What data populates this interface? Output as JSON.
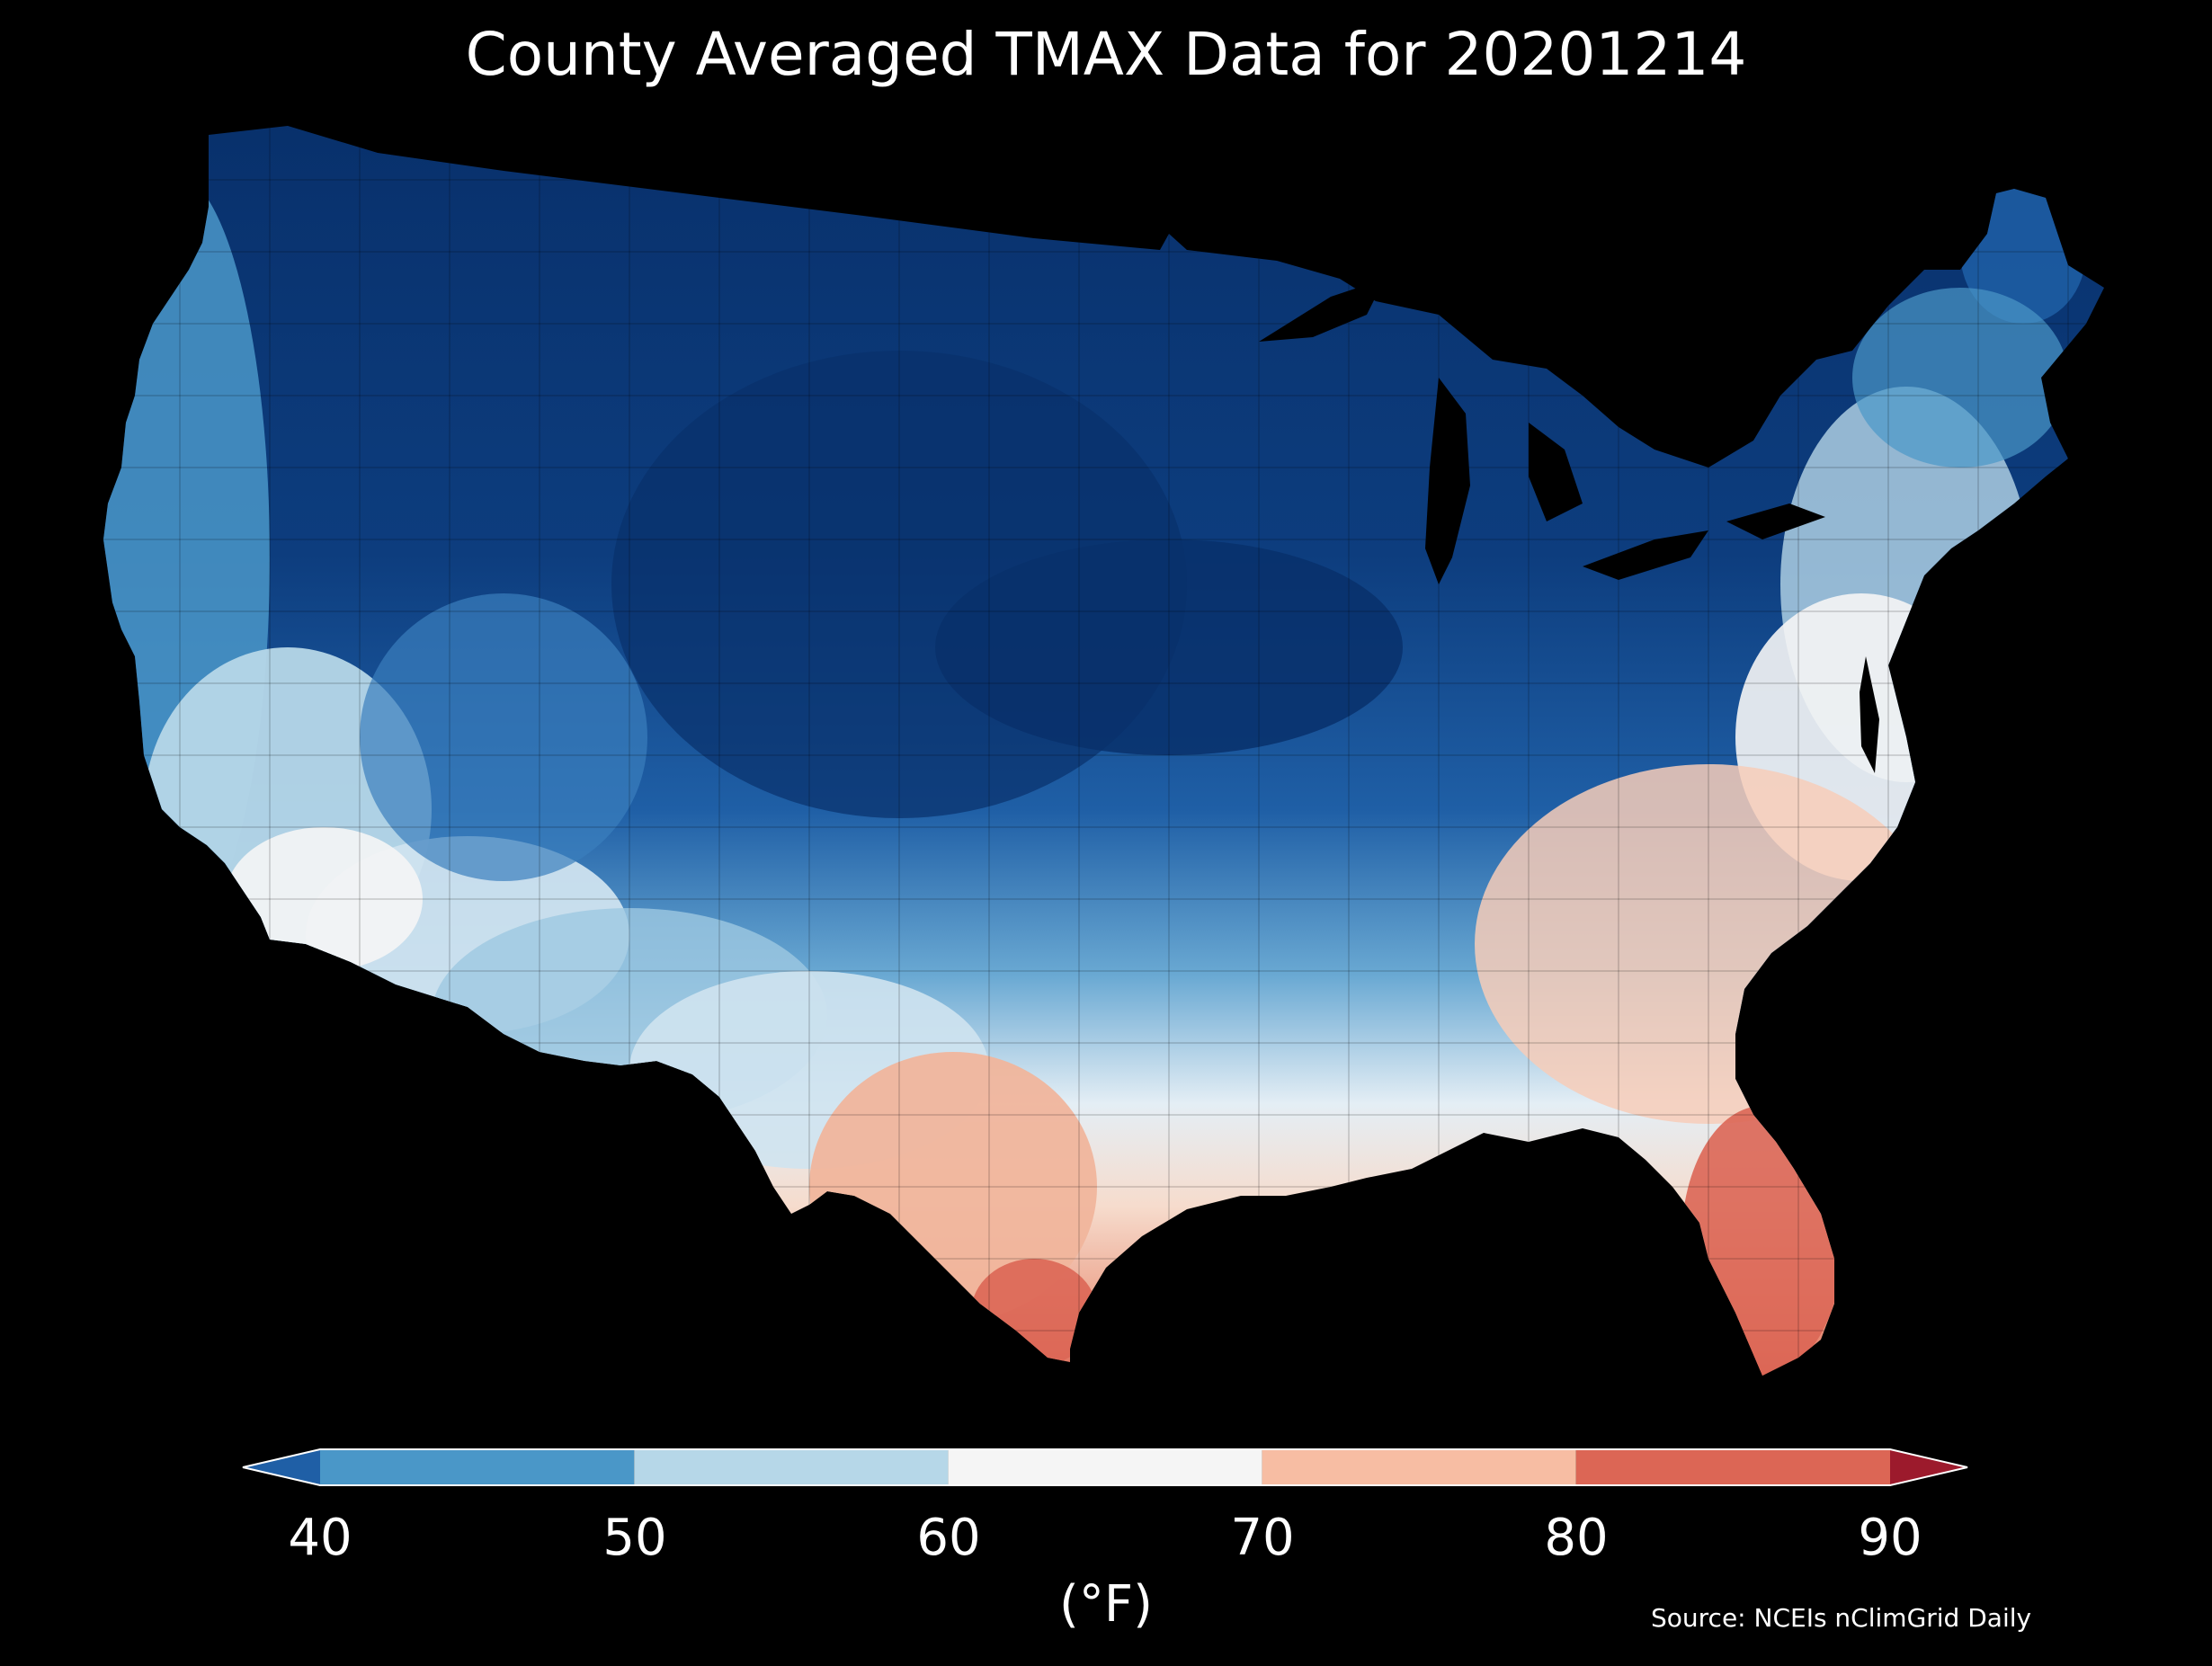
{
  "title": "County Averaged TMAX Data for 20201214",
  "colorbar": {
    "label": "(°F)",
    "ticks": [
      "40",
      "50",
      "60",
      "70",
      "80",
      "90"
    ],
    "segments": [
      {
        "from": null,
        "to": 40,
        "color": "#1f5fa6"
      },
      {
        "from": 40,
        "to": 50,
        "color": "#4a97c8"
      },
      {
        "from": 50,
        "to": 60,
        "color": "#b6d7e8"
      },
      {
        "from": 60,
        "to": 70,
        "color": "#f5f5f5"
      },
      {
        "from": 70,
        "to": 80,
        "color": "#f7bda3"
      },
      {
        "from": 80,
        "to": 90,
        "color": "#dc6655"
      },
      {
        "from": 90,
        "to": null,
        "color": "#9c1a2c"
      }
    ]
  },
  "source": "Source: NCEIs nClimGrid Daily",
  "colors": {
    "background": "#000000",
    "very_cold": "#08306b",
    "cold": "#1f5fa6",
    "cool": "#4a97c8",
    "mild": "#b6d7e8",
    "neutral": "#f5f5f5",
    "warm": "#f7bda3",
    "hot": "#dc6655"
  }
}
